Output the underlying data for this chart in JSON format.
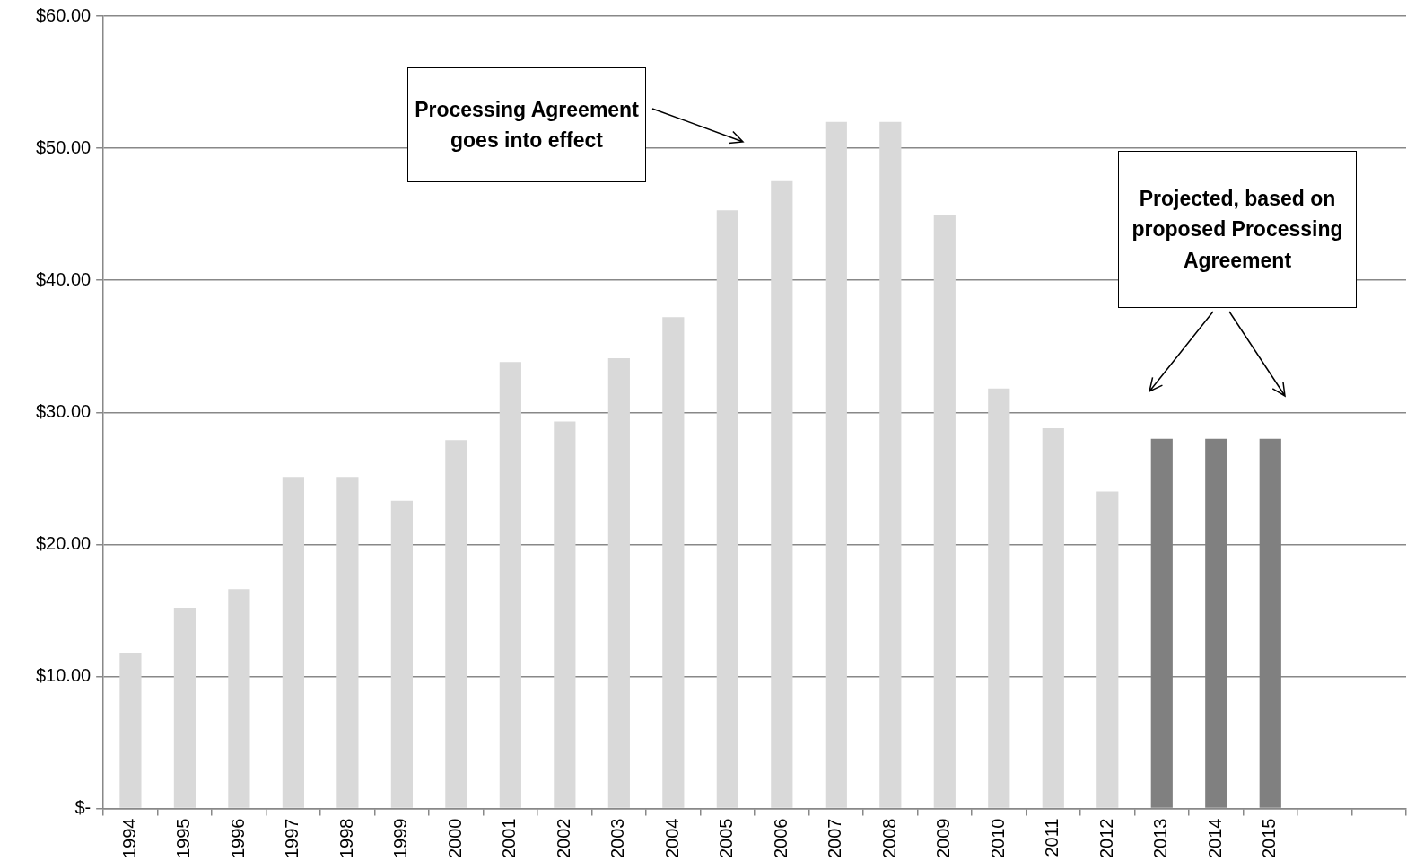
{
  "chart_data": {
    "type": "bar",
    "categories": [
      "1994",
      "1995",
      "1996",
      "1997",
      "1998",
      "1999",
      "2000",
      "2001",
      "2002",
      "2003",
      "2004",
      "2005",
      "2006",
      "2007",
      "2008",
      "2009",
      "2010",
      "2011",
      "2012",
      "2013",
      "2014",
      "2015",
      null,
      null
    ],
    "values": [
      11.8,
      15.2,
      16.6,
      25.1,
      25.1,
      23.3,
      27.9,
      33.8,
      29.3,
      34.1,
      37.2,
      45.3,
      47.5,
      52,
      52,
      44.9,
      31.8,
      28.8,
      24,
      28,
      28,
      28,
      null,
      null
    ],
    "colors": [
      "#d9d9d9",
      "#d9d9d9",
      "#d9d9d9",
      "#d9d9d9",
      "#d9d9d9",
      "#d9d9d9",
      "#d9d9d9",
      "#d9d9d9",
      "#d9d9d9",
      "#d9d9d9",
      "#d9d9d9",
      "#d9d9d9",
      "#d9d9d9",
      "#d9d9d9",
      "#d9d9d9",
      "#d9d9d9",
      "#d9d9d9",
      "#d9d9d9",
      "#d9d9d9",
      "#808080",
      "#808080",
      "#808080",
      "#d9d9d9",
      "#d9d9d9"
    ],
    "ylim": [
      0,
      60
    ],
    "yticks": [
      {
        "value": 0,
        "label": "$-"
      },
      {
        "value": 10,
        "label": "$10.00"
      },
      {
        "value": 20,
        "label": "$20.00"
      },
      {
        "value": 30,
        "label": "$30.00"
      },
      {
        "value": 40,
        "label": "$40.00"
      },
      {
        "value": 50,
        "label": "$50.00"
      },
      {
        "value": 60,
        "label": "$60.00"
      }
    ],
    "grid": "y",
    "legend": false,
    "annotations": [
      "Processing Agreement goes into effect",
      "Projected,  based on proposed Processing Agreement"
    ]
  }
}
